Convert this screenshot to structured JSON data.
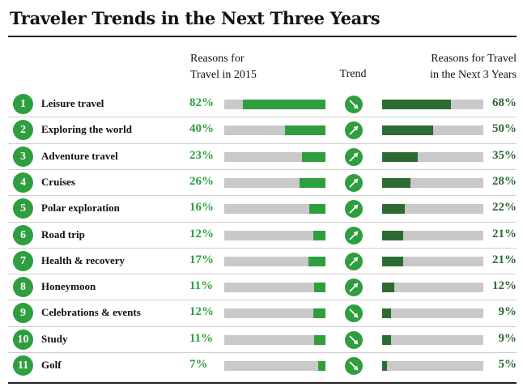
{
  "title": "Traveler Trends in the Next Three Years",
  "header": {
    "col_2015_line1": "Reasons for",
    "col_2015_line2": "Travel in 2015",
    "col_trend": "Trend",
    "col_next_line1": "Reasons for Travel",
    "col_next_line2": "in the Next 3 Years"
  },
  "colors": {
    "green": "#2e9e3e",
    "dark_green": "#2d6b33",
    "bar_background": "#c9c9c9"
  },
  "chart_data": {
    "type": "bar",
    "categories": [
      "Leisure travel",
      "Exploring the world",
      "Adventure travel",
      "Cruises",
      "Polar exploration",
      "Road trip",
      "Health & recovery",
      "Honeymoon",
      "Celebrations & events",
      "Study",
      "Golf"
    ],
    "series": [
      {
        "name": "Reasons for Travel in 2015",
        "values": [
          82,
          40,
          23,
          26,
          16,
          12,
          17,
          11,
          12,
          11,
          7
        ]
      },
      {
        "name": "Reasons for Travel in the Next 3 Years",
        "values": [
          68,
          50,
          35,
          28,
          22,
          21,
          21,
          12,
          9,
          9,
          5
        ]
      }
    ],
    "ylim": [
      0,
      100
    ],
    "rows": [
      {
        "rank": "1",
        "label": "Leisure travel",
        "pct_2015": "82%",
        "value_2015": 82,
        "trend": "down-icon",
        "pct_next": "68%",
        "value_next": 68
      },
      {
        "rank": "2",
        "label": "Exploring the world",
        "pct_2015": "40%",
        "value_2015": 40,
        "trend": "up-icon",
        "pct_next": "50%",
        "value_next": 50
      },
      {
        "rank": "3",
        "label": "Adventure travel",
        "pct_2015": "23%",
        "value_2015": 23,
        "trend": "up-icon",
        "pct_next": "35%",
        "value_next": 35
      },
      {
        "rank": "4",
        "label": "Cruises",
        "pct_2015": "26%",
        "value_2015": 26,
        "trend": "up-icon",
        "pct_next": "28%",
        "value_next": 28
      },
      {
        "rank": "5",
        "label": "Polar exploration",
        "pct_2015": "16%",
        "value_2015": 16,
        "trend": "up-icon",
        "pct_next": "22%",
        "value_next": 22
      },
      {
        "rank": "6",
        "label": "Road trip",
        "pct_2015": "12%",
        "value_2015": 12,
        "trend": "up-icon",
        "pct_next": "21%",
        "value_next": 21
      },
      {
        "rank": "7",
        "label": "Health & recovery",
        "pct_2015": "17%",
        "value_2015": 17,
        "trend": "up-icon",
        "pct_next": "21%",
        "value_next": 21
      },
      {
        "rank": "8",
        "label": "Honeymoon",
        "pct_2015": "11%",
        "value_2015": 11,
        "trend": "up-icon",
        "pct_next": "12%",
        "value_next": 12
      },
      {
        "rank": "9",
        "label": "Celebrations & events",
        "pct_2015": "12%",
        "value_2015": 12,
        "trend": "down-icon",
        "pct_next": "9%",
        "value_next": 9
      },
      {
        "rank": "10",
        "label": "Study",
        "pct_2015": "11%",
        "value_2015": 11,
        "trend": "down-icon",
        "pct_next": "9%",
        "value_next": 9
      },
      {
        "rank": "11",
        "label": "Golf",
        "pct_2015": "7%",
        "value_2015": 7,
        "trend": "down-icon",
        "pct_next": "5%",
        "value_next": 5
      }
    ]
  }
}
